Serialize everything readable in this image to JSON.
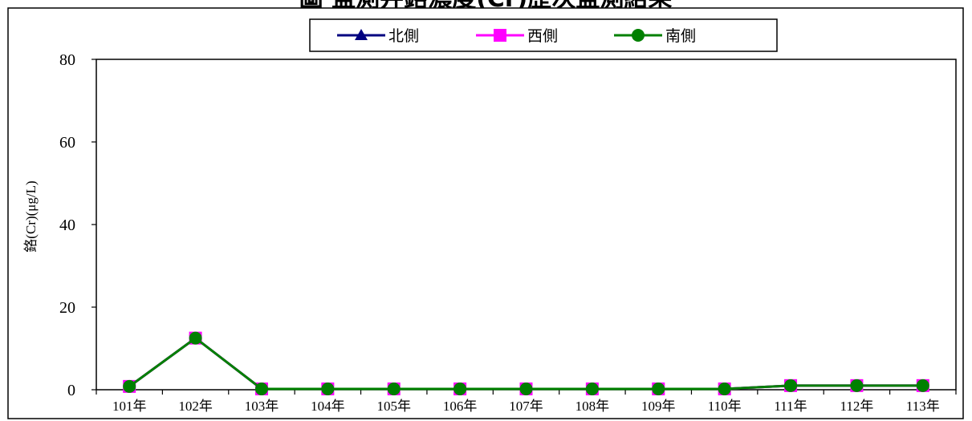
{
  "chart_data": {
    "type": "line",
    "title": "圖          監測井鉻濃度(Cr)歷次監測結果",
    "ylabel": "鉻(Cr)(μg/L)",
    "xlabel": "",
    "categories": [
      "101年",
      "102年",
      "103年",
      "104年",
      "105年",
      "106年",
      "107年",
      "108年",
      "109年",
      "110年",
      "111年",
      "112年",
      "113年"
    ],
    "ylim": [
      0,
      80
    ],
    "yticks": [
      0,
      20,
      40,
      60,
      80
    ],
    "grid": false,
    "legend_position": "top-center",
    "series": [
      {
        "name": "北側",
        "marker": "triangle",
        "color": "#000080",
        "values": [
          0.8,
          12.5,
          0.2,
          0.2,
          0.2,
          0.2,
          0.2,
          0.2,
          0.2,
          0.2,
          1.0,
          1.0,
          1.0
        ]
      },
      {
        "name": "西側",
        "marker": "square",
        "color": "#FF00FF",
        "values": [
          0.8,
          12.5,
          0.2,
          0.2,
          0.2,
          0.2,
          0.2,
          0.2,
          0.2,
          0.2,
          1.0,
          1.0,
          1.0
        ]
      },
      {
        "name": "南側",
        "marker": "circle",
        "color": "#008000",
        "values": [
          0.8,
          12.5,
          0.2,
          0.2,
          0.2,
          0.2,
          0.2,
          0.2,
          0.2,
          0.2,
          1.0,
          1.0,
          1.0
        ]
      }
    ]
  }
}
